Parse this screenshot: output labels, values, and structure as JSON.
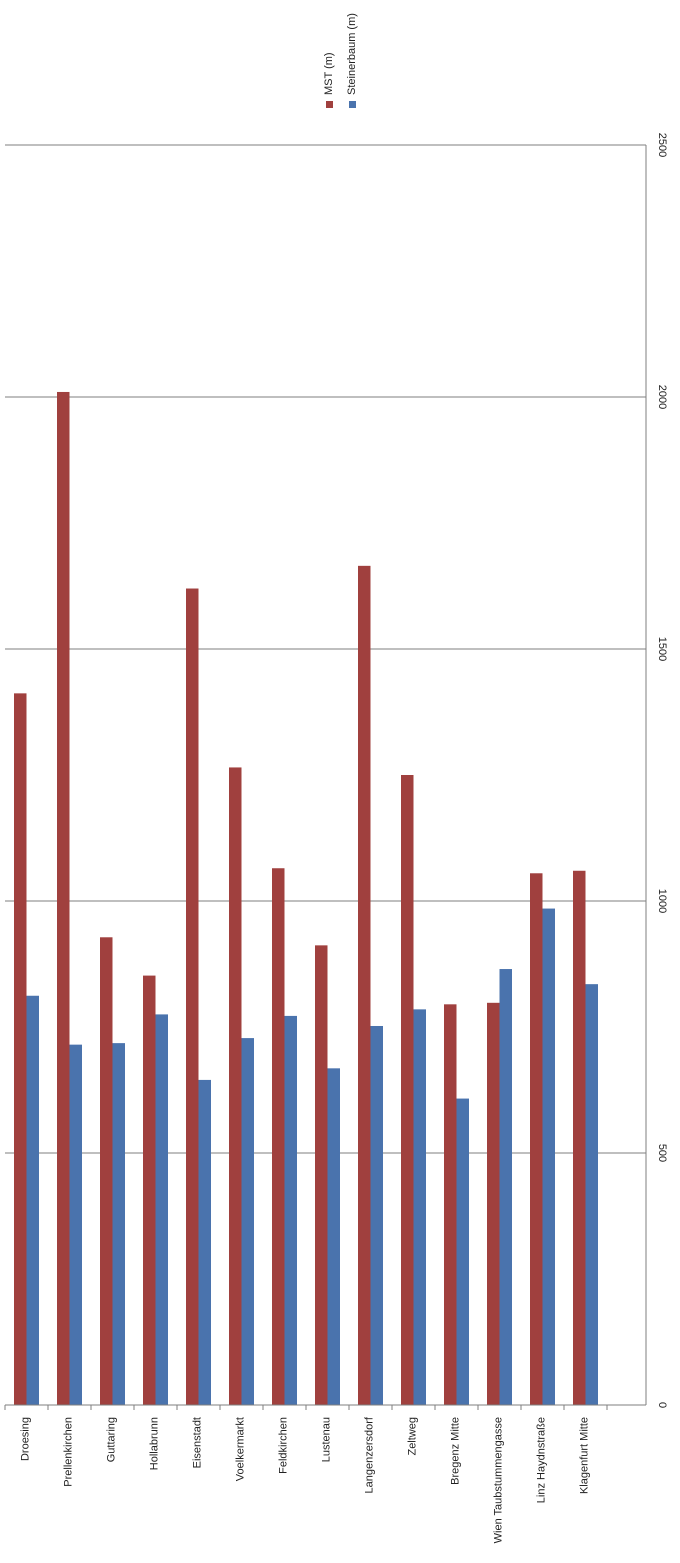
{
  "chart_data": {
    "type": "bar",
    "orientation": "rotated-90-clockwise",
    "title": "",
    "xlabel": "",
    "ylabel": "",
    "ylim": [
      0,
      2500
    ],
    "yticks": [
      0,
      500,
      1000,
      1500,
      2000,
      2500
    ],
    "grid": true,
    "legend_position": "top",
    "categories": [
      "Droesing",
      "Prellenkirchen",
      "Guttaring",
      "Hollabrunn",
      "Eisenstadt",
      "Voelkermarkt",
      "Feldkirchen",
      "Lustenau",
      "Langenzersdorf",
      "Zeltweg",
      "Bregenz Mitte",
      "Wien Taubstummengasse",
      "Linz Haydnstraße",
      "Klagenfurt Mitte"
    ],
    "series": [
      {
        "name": "MST (m)",
        "color": "#a0403e",
        "values": [
          1412,
          2010,
          928,
          852,
          1620,
          1265,
          1065,
          912,
          1665,
          1250,
          795,
          798,
          1055,
          1060
        ]
      },
      {
        "name": "Steinerbaum (m)",
        "color": "#4a73ad",
        "values": [
          812,
          715,
          718,
          775,
          645,
          728,
          772,
          668,
          752,
          785,
          608,
          865,
          985,
          835
        ]
      }
    ]
  }
}
